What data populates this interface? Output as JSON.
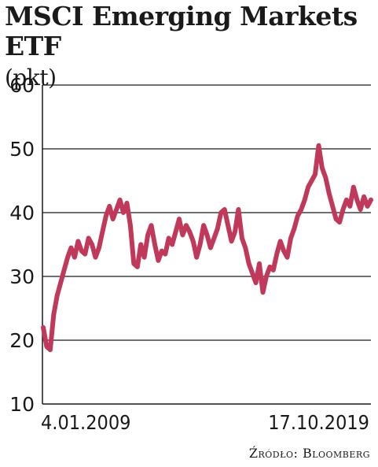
{
  "title": {
    "main": "MSCI Emerging Markets ETF",
    "unit": "(pkt)"
  },
  "source": "Źródło: Bloomberg",
  "colors": {
    "line": "#c0395a",
    "grid": "#1a1a1a",
    "text": "#1a1a1a"
  },
  "chart_data": {
    "type": "line",
    "title": "MSCI Emerging Markets ETF (pkt)",
    "ylabel": "pkt",
    "ylim": [
      10,
      60
    ],
    "yticks": [
      "10",
      "20",
      "30",
      "40",
      "50",
      "60"
    ],
    "x_labels": [
      "4.01.2009",
      "17.10.2019"
    ],
    "grid": true,
    "series": [
      {
        "values": [
          22,
          19,
          18.5,
          24,
          27,
          29,
          31,
          33,
          34.5,
          33,
          35.5,
          34,
          33.5,
          36,
          35,
          33,
          34.5,
          37,
          39.5,
          41,
          39,
          40.5,
          42,
          40,
          41.5,
          38,
          32,
          31.5,
          35,
          33,
          36.5,
          38,
          35,
          32.5,
          34,
          33.5,
          36,
          35,
          37,
          39,
          36.5,
          38,
          37,
          35.5,
          33,
          35,
          38,
          36.5,
          34.5,
          36,
          37.5,
          40,
          40.5,
          38,
          35.5,
          37,
          40.5,
          36,
          34.5,
          32,
          30.5,
          29,
          32,
          27.5,
          30,
          31.5,
          31,
          33.5,
          35.5,
          34,
          33,
          36,
          37.5,
          39.5,
          40.5,
          42,
          44,
          45,
          46,
          50.5,
          47,
          45.5,
          43,
          41,
          39,
          38.5,
          40.5,
          42,
          41,
          44,
          42,
          40.5,
          42.5,
          41,
          42
        ]
      }
    ]
  }
}
